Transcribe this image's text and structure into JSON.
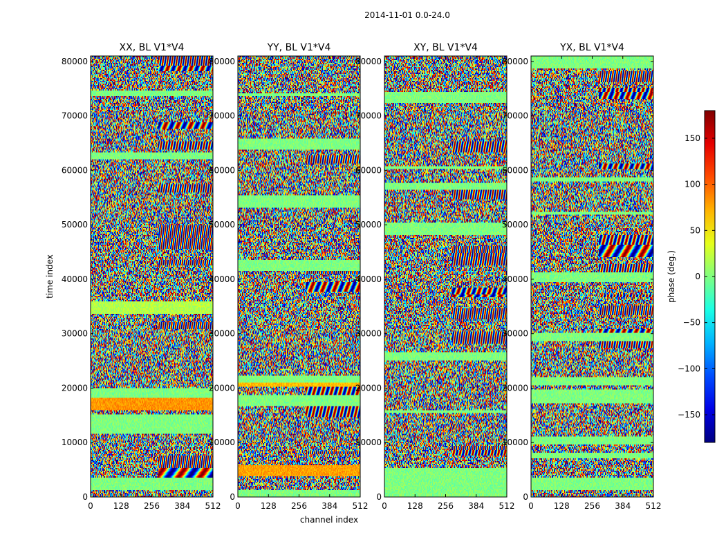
{
  "chart_data": {
    "type": "heatmap",
    "title": "2014-11-01 0.0-24.0",
    "xlabel": "channel index",
    "ylabel": "time index",
    "xlim": [
      0,
      512
    ],
    "ylim": [
      0,
      81000
    ],
    "xticks": [
      "0",
      "128",
      "256",
      "384",
      "512"
    ],
    "yticks": [
      "0",
      "10000",
      "20000",
      "30000",
      "40000",
      "50000",
      "60000",
      "70000",
      "80000"
    ],
    "colorbar": {
      "label": "phase (deg.)",
      "range": [
        -180,
        180
      ],
      "ticks": [
        "150",
        "100",
        "50",
        "0",
        "−50",
        "−100",
        "−150"
      ],
      "colormap": "jet"
    },
    "panels": [
      {
        "title": "XX, BL V1*V4"
      },
      {
        "title": "YY, BL V1*V4"
      },
      {
        "title": "XY, BL V1*V4"
      },
      {
        "title": "YX, BL V1*V4"
      }
    ]
  }
}
